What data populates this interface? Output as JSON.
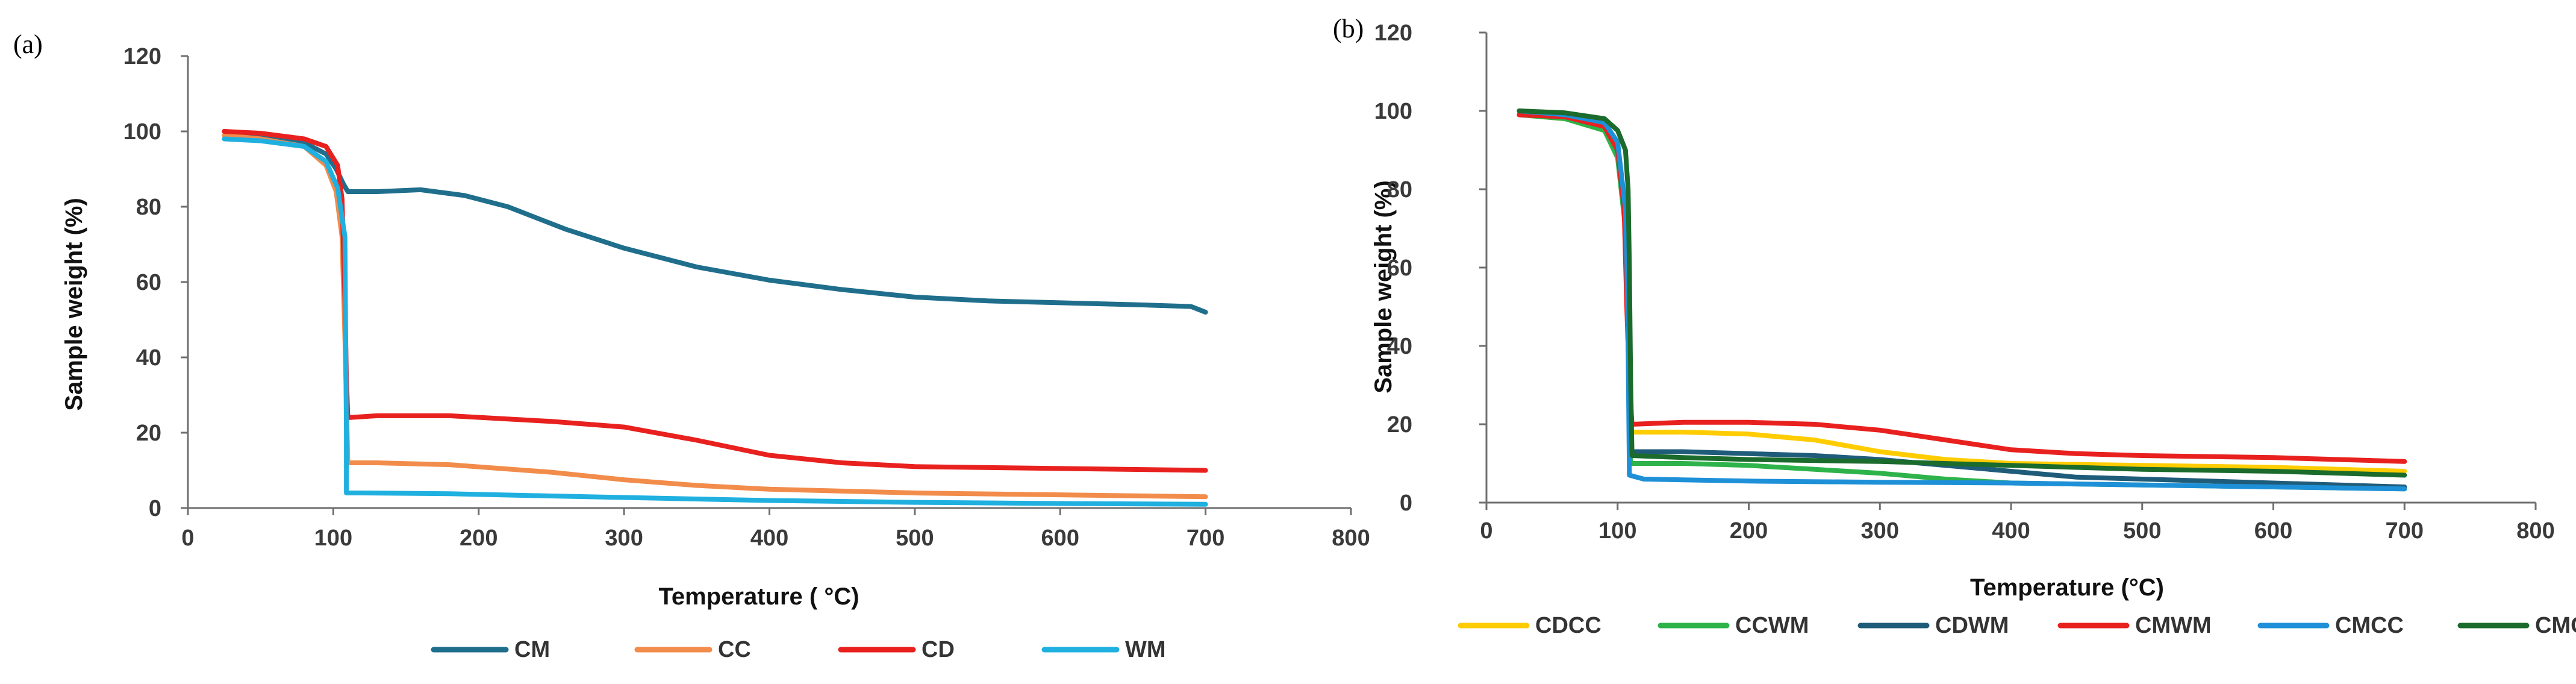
{
  "chart_data": [
    {
      "panel": "(a)",
      "type": "line",
      "xlabel": "Temperature ( °C)",
      "ylabel": "Sample weight (%)",
      "xlim": [
        0,
        800
      ],
      "ylim": [
        0,
        120
      ],
      "xticks": [
        0,
        100,
        200,
        300,
        400,
        500,
        600,
        700,
        800
      ],
      "yticks": [
        0,
        20,
        40,
        60,
        80,
        100,
        120
      ],
      "legend_position": "bottom",
      "series": [
        {
          "name": "CM",
          "color": "#1F6E8C",
          "points": [
            [
              25,
              100
            ],
            [
              50,
              99
            ],
            [
              80,
              97
            ],
            [
              95,
              94
            ],
            [
              102,
              90
            ],
            [
              107,
              86
            ],
            [
              110,
              84
            ],
            [
              130,
              84
            ],
            [
              160,
              84.5
            ],
            [
              190,
              83
            ],
            [
              220,
              80
            ],
            [
              260,
              74
            ],
            [
              300,
              69
            ],
            [
              350,
              64
            ],
            [
              400,
              60.5
            ],
            [
              450,
              58
            ],
            [
              500,
              56
            ],
            [
              550,
              55
            ],
            [
              600,
              54.5
            ],
            [
              650,
              54
            ],
            [
              690,
              53.5
            ],
            [
              700,
              52
            ]
          ]
        },
        {
          "name": "CC",
          "color": "#F28C4B",
          "points": [
            [
              25,
              99
            ],
            [
              50,
              98
            ],
            [
              80,
              96
            ],
            [
              95,
              91
            ],
            [
              102,
              84
            ],
            [
              106,
              72
            ],
            [
              108,
              45
            ],
            [
              110,
              12
            ],
            [
              130,
              12
            ],
            [
              180,
              11.5
            ],
            [
              250,
              9.5
            ],
            [
              300,
              7.5
            ],
            [
              350,
              6
            ],
            [
              400,
              5
            ],
            [
              450,
              4.5
            ],
            [
              500,
              4
            ],
            [
              600,
              3.5
            ],
            [
              700,
              3
            ]
          ]
        },
        {
          "name": "CD",
          "color": "#E8211F",
          "points": [
            [
              25,
              100
            ],
            [
              50,
              99.5
            ],
            [
              80,
              98
            ],
            [
              95,
              96
            ],
            [
              103,
              91
            ],
            [
              106,
              82
            ],
            [
              108,
              55
            ],
            [
              109,
              35
            ],
            [
              110,
              24
            ],
            [
              130,
              24.5
            ],
            [
              180,
              24.5
            ],
            [
              250,
              23
            ],
            [
              300,
              21.5
            ],
            [
              350,
              18
            ],
            [
              400,
              14
            ],
            [
              450,
              12
            ],
            [
              500,
              11
            ],
            [
              600,
              10.5
            ],
            [
              700,
              10
            ]
          ]
        },
        {
          "name": "WM",
          "color": "#1FB0E0",
          "points": [
            [
              25,
              98
            ],
            [
              50,
              97.5
            ],
            [
              80,
              96
            ],
            [
              95,
              92
            ],
            [
              103,
              85
            ],
            [
              108,
              72
            ],
            [
              109,
              20
            ],
            [
              109,
              4
            ],
            [
              120,
              4
            ],
            [
              180,
              3.8
            ],
            [
              250,
              3.2
            ],
            [
              300,
              2.8
            ],
            [
              400,
              2
            ],
            [
              500,
              1.5
            ],
            [
              600,
              1.2
            ],
            [
              700,
              1
            ]
          ]
        }
      ]
    },
    {
      "panel": "(b)",
      "type": "line",
      "xlabel": "Temperature (°C)",
      "ylabel": "Sample weight (%)",
      "xlim": [
        0,
        800
      ],
      "ylim": [
        0,
        120
      ],
      "xticks": [
        0,
        100,
        200,
        300,
        400,
        500,
        600,
        700,
        800
      ],
      "yticks": [
        0,
        20,
        40,
        60,
        80,
        100,
        120
      ],
      "legend_position": "bottom",
      "series": [
        {
          "name": "CDCC",
          "color": "#FFCC00",
          "points": [
            [
              25,
              99
            ],
            [
              60,
              98
            ],
            [
              90,
              95
            ],
            [
              100,
              90
            ],
            [
              106,
              75
            ],
            [
              108,
              50
            ],
            [
              109,
              25
            ],
            [
              110,
              18
            ],
            [
              150,
              18
            ],
            [
              200,
              17.5
            ],
            [
              250,
              16
            ],
            [
              300,
              13
            ],
            [
              350,
              11
            ],
            [
              400,
              10
            ],
            [
              500,
              9.5
            ],
            [
              600,
              9
            ],
            [
              700,
              8
            ]
          ]
        },
        {
          "name": "CCWM",
          "color": "#2DB34A",
          "points": [
            [
              25,
              99
            ],
            [
              60,
              98
            ],
            [
              90,
              95
            ],
            [
              100,
              88
            ],
            [
              106,
              70
            ],
            [
              108,
              40
            ],
            [
              110,
              10
            ],
            [
              150,
              10
            ],
            [
              200,
              9.5
            ],
            [
              250,
              8.5
            ],
            [
              300,
              7.5
            ],
            [
              350,
              6
            ],
            [
              400,
              5
            ],
            [
              500,
              4.5
            ],
            [
              600,
              4
            ],
            [
              700,
              3.5
            ]
          ]
        },
        {
          "name": "CDWM",
          "color": "#1F5C7A",
          "points": [
            [
              25,
              99
            ],
            [
              60,
              98.5
            ],
            [
              90,
              96
            ],
            [
              100,
              90
            ],
            [
              106,
              72
            ],
            [
              108,
              45
            ],
            [
              110,
              13
            ],
            [
              150,
              13
            ],
            [
              200,
              12.5
            ],
            [
              250,
              12
            ],
            [
              300,
              11
            ],
            [
              350,
              9.5
            ],
            [
              400,
              8
            ],
            [
              450,
              6.5
            ],
            [
              500,
              6
            ],
            [
              600,
              5
            ],
            [
              700,
              4
            ]
          ]
        },
        {
          "name": "CMWM",
          "color": "#E8211F",
          "points": [
            [
              25,
              99
            ],
            [
              60,
              98.5
            ],
            [
              90,
              96
            ],
            [
              100,
              90
            ],
            [
              105,
              75
            ],
            [
              107,
              50
            ],
            [
              109,
              30
            ],
            [
              111,
              20
            ],
            [
              150,
              20.5
            ],
            [
              200,
              20.5
            ],
            [
              250,
              20
            ],
            [
              300,
              18.5
            ],
            [
              350,
              16
            ],
            [
              400,
              13.5
            ],
            [
              450,
              12.5
            ],
            [
              500,
              12
            ],
            [
              600,
              11.5
            ],
            [
              700,
              10.5
            ]
          ]
        },
        {
          "name": "CMCC",
          "color": "#1E90D8",
          "points": [
            [
              25,
              100
            ],
            [
              60,
              99
            ],
            [
              90,
              97
            ],
            [
              100,
              92
            ],
            [
              106,
              75
            ],
            [
              107,
              62
            ],
            [
              108,
              40
            ],
            [
              109,
              7
            ],
            [
              120,
              6
            ],
            [
              200,
              5.5
            ],
            [
              300,
              5.2
            ],
            [
              400,
              5
            ],
            [
              500,
              4.5
            ],
            [
              600,
              4
            ],
            [
              700,
              3.5
            ]
          ]
        },
        {
          "name": "CMCD",
          "color": "#1B6B2C",
          "points": [
            [
              25,
              100
            ],
            [
              60,
              99.5
            ],
            [
              90,
              98
            ],
            [
              100,
              95
            ],
            [
              106,
              90
            ],
            [
              108,
              80
            ],
            [
              109,
              60
            ],
            [
              110,
              30
            ],
            [
              111,
              12
            ],
            [
              150,
              11.5
            ],
            [
              200,
              11
            ],
            [
              300,
              10.5
            ],
            [
              400,
              9.5
            ],
            [
              500,
              8.5
            ],
            [
              600,
              8
            ],
            [
              700,
              7
            ]
          ]
        }
      ]
    }
  ]
}
